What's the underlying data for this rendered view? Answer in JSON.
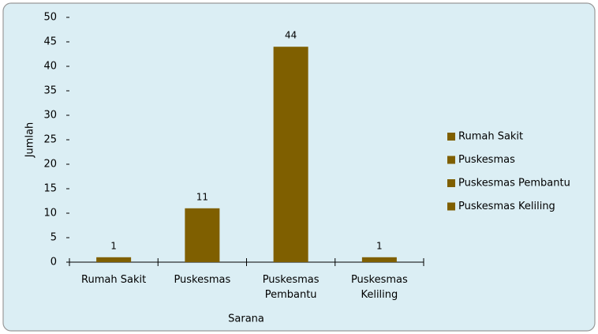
{
  "chart_data": {
    "type": "bar",
    "categories": [
      "Rumah Sakit",
      "Puskesmas",
      "Puskesmas Pembantu",
      "Puskesmas Keliling"
    ],
    "values": [
      1,
      11,
      44,
      1
    ],
    "color": "#7f5f00",
    "ylim": [
      0,
      50
    ],
    "yticks": [
      0,
      5,
      10,
      15,
      20,
      25,
      30,
      35,
      40,
      45,
      50
    ],
    "x_label": "Sarana",
    "y_label": "Jumlah",
    "legend": "right",
    "grid": false
  }
}
